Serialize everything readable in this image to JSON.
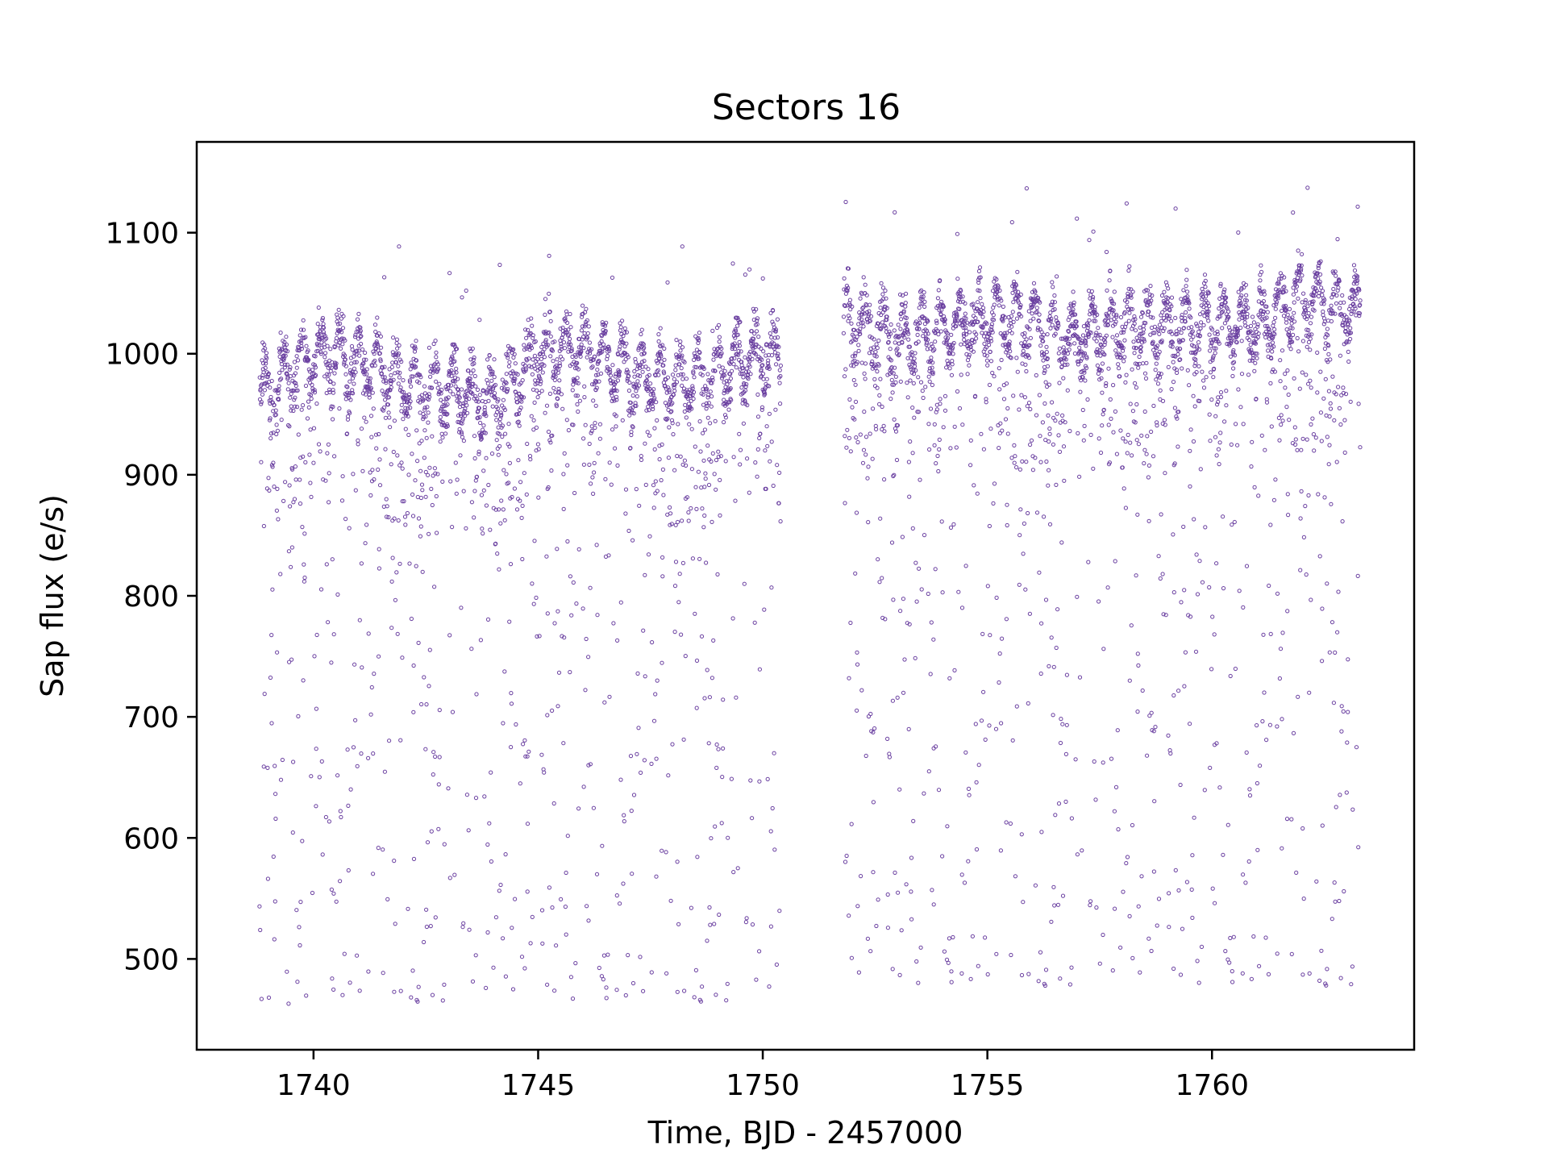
{
  "chart_data": {
    "type": "scatter",
    "title": "Sectors 16",
    "xlabel": "Time, BJD - 2457000",
    "ylabel": "Sap flux (e/s)",
    "xlim": [
      1737.4,
      1764.5
    ],
    "ylim": [
      425,
      1175
    ],
    "xticks": [
      1740,
      1745,
      1750,
      1755,
      1760
    ],
    "yticks": [
      500,
      600,
      700,
      800,
      900,
      1000,
      1100
    ],
    "grid": false,
    "legend": "none",
    "marker": "open-circle",
    "color": "#6a3fa0",
    "segments": [
      {
        "x_range": [
          1738.8,
          1750.4
        ],
        "baseline": [
          [
            1738.8,
            965
          ],
          [
            1740.0,
            1000
          ],
          [
            1741.0,
            995
          ],
          [
            1742.0,
            975
          ],
          [
            1743.0,
            970
          ],
          [
            1744.0,
            960
          ],
          [
            1745.0,
            1000
          ],
          [
            1746.0,
            1005
          ],
          [
            1747.0,
            985
          ],
          [
            1748.0,
            975
          ],
          [
            1749.0,
            985
          ],
          [
            1750.0,
            1000
          ],
          [
            1750.4,
            995
          ]
        ],
        "y_min": 462,
        "y_max": 1090
      },
      {
        "x_range": [
          1751.8,
          1763.3
        ],
        "baseline": [
          [
            1751.8,
            1030
          ],
          [
            1753.0,
            1010
          ],
          [
            1754.0,
            1020
          ],
          [
            1755.0,
            1030
          ],
          [
            1756.0,
            1025
          ],
          [
            1757.0,
            1010
          ],
          [
            1758.0,
            1025
          ],
          [
            1759.0,
            1020
          ],
          [
            1760.0,
            1025
          ],
          [
            1761.0,
            1025
          ],
          [
            1762.0,
            1045
          ],
          [
            1763.3,
            1035
          ]
        ],
        "y_min": 475,
        "y_max": 1138
      }
    ]
  }
}
